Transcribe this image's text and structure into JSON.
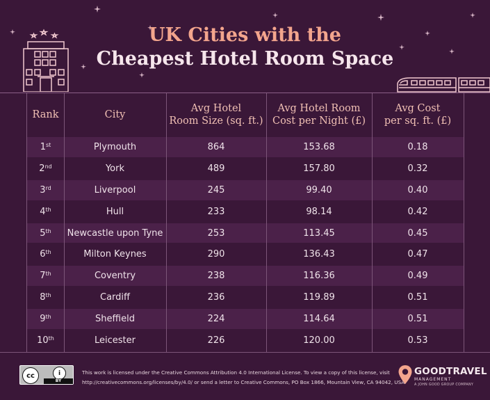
{
  "header": {
    "title_line1": "UK Cities with the",
    "title_line2": "Cheapest Hotel Room Space"
  },
  "chart_data": {
    "type": "table",
    "columns": [
      "Rank",
      "City",
      "Avg Hotel Room Size (sq. ft.)",
      "Avg Hotel Room Cost per Night (£)",
      "Avg Cost per sq. ft. (£)"
    ],
    "header_lines": [
      [
        "Rank"
      ],
      [
        "City"
      ],
      [
        "Avg Hotel",
        "Room Size (sq. ft.)"
      ],
      [
        "Avg Hotel Room",
        "Cost per Night (£)"
      ],
      [
        "Avg Cost",
        "per sq. ft. (£)"
      ]
    ],
    "rows": [
      {
        "rank_num": "1",
        "rank_suffix": "st",
        "city": "Plymouth",
        "size": "864",
        "cost": "153.68",
        "per_sqft": "0.18"
      },
      {
        "rank_num": "2",
        "rank_suffix": "nd",
        "city": "York",
        "size": "489",
        "cost": "157.80",
        "per_sqft": "0.32"
      },
      {
        "rank_num": "3",
        "rank_suffix": "rd",
        "city": "Liverpool",
        "size": "245",
        "cost": "99.40",
        "per_sqft": "0.40"
      },
      {
        "rank_num": "4",
        "rank_suffix": "th",
        "city": "Hull",
        "size": "233",
        "cost": "98.14",
        "per_sqft": "0.42"
      },
      {
        "rank_num": "5",
        "rank_suffix": "th",
        "city": "Newcastle upon Tyne",
        "size": "253",
        "cost": "113.45",
        "per_sqft": "0.45"
      },
      {
        "rank_num": "6",
        "rank_suffix": "th",
        "city": "Milton Keynes",
        "size": "290",
        "cost": "136.43",
        "per_sqft": "0.47"
      },
      {
        "rank_num": "7",
        "rank_suffix": "th",
        "city": "Coventry",
        "size": "238",
        "cost": "116.36",
        "per_sqft": "0.49"
      },
      {
        "rank_num": "8",
        "rank_suffix": "th",
        "city": "Cardiff",
        "size": "236",
        "cost": "119.89",
        "per_sqft": "0.51"
      },
      {
        "rank_num": "9",
        "rank_suffix": "th",
        "city": "Sheffield",
        "size": "224",
        "cost": "114.64",
        "per_sqft": "0.51"
      },
      {
        "rank_num": "10",
        "rank_suffix": "th",
        "city": "Leicester",
        "size": "226",
        "cost": "120.00",
        "per_sqft": "0.53"
      }
    ]
  },
  "footer": {
    "license_line1": "This work is licensed under the Creative Commons Attribution 4.0 International License. To view a copy of this license, visit",
    "license_line2": "http://creativecommons.org/licenses/by/4.0/ or send a letter to Creative Commons, PO Box 1866, Mountain View, CA 94042, USA.",
    "cc_badge_label": "BY",
    "brand_name": "GOODTRAVEL",
    "brand_sub": "MANAGEMENT",
    "brand_tagline": "A JOHN GOOD GROUP COMPANY"
  },
  "colors": {
    "background": "#3a1738",
    "title_accent": "#f3a58d",
    "title_main": "#f6e6ec",
    "header_text": "#f1c0b4",
    "row_shade": "#4b2149",
    "grid_line": "#7d5679"
  },
  "icons": [
    "star-icon",
    "hotel-building-icon",
    "train-icon",
    "creative-commons-icon",
    "attribution-icon",
    "location-pin-icon"
  ]
}
